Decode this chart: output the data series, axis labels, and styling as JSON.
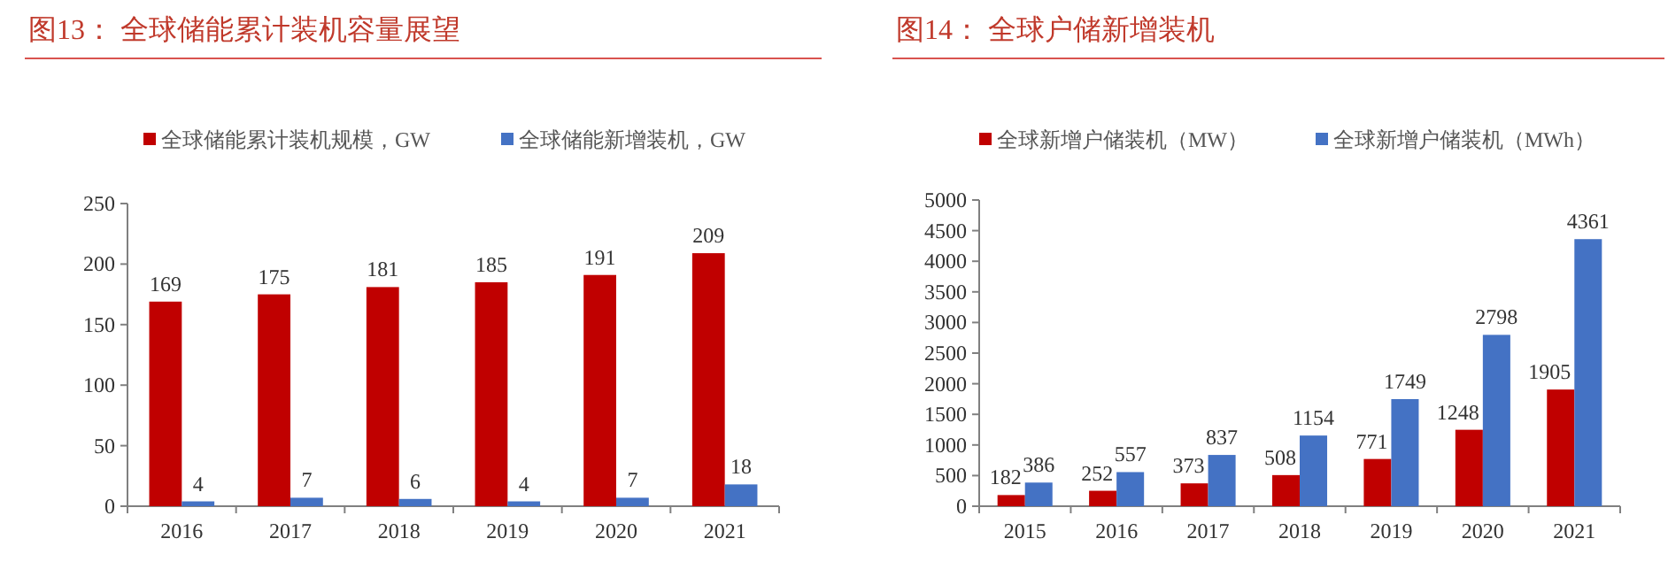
{
  "chart_data": [
    {
      "type": "bar",
      "title": "图13：  全球储能累计装机容量展望",
      "categories": [
        "2016",
        "2017",
        "2018",
        "2019",
        "2020",
        "2021"
      ],
      "series": [
        {
          "name": "全球储能累计装机规模，GW",
          "color": "#c00000",
          "values": [
            169,
            175,
            181,
            185,
            191,
            209
          ]
        },
        {
          "name": "全球储能新增装机，GW",
          "color": "#4472c4",
          "values": [
            4,
            7,
            6,
            4,
            7,
            18
          ]
        }
      ],
      "ylim": [
        0,
        250
      ],
      "yticks": [
        0,
        50,
        100,
        150,
        200,
        250
      ],
      "data_labels": true,
      "legend": "top",
      "grid": false
    },
    {
      "type": "bar",
      "title": "图14：  全球户储新增装机",
      "categories": [
        "2015",
        "2016",
        "2017",
        "2018",
        "2019",
        "2020",
        "2021"
      ],
      "series": [
        {
          "name": "全球新增户储装机（MW）",
          "color": "#c00000",
          "values": [
            182,
            252,
            373,
            508,
            771,
            1248,
            1905
          ]
        },
        {
          "name": "全球新增户储装机（MWh）",
          "color": "#4472c4",
          "values": [
            386,
            557,
            837,
            1154,
            1749,
            2798,
            4361
          ]
        }
      ],
      "ylim": [
        0,
        5000
      ],
      "yticks": [
        0,
        500,
        1000,
        1500,
        2000,
        2500,
        3000,
        3500,
        4000,
        4500,
        5000
      ],
      "data_labels": true,
      "legend": "top",
      "grid": false
    }
  ]
}
